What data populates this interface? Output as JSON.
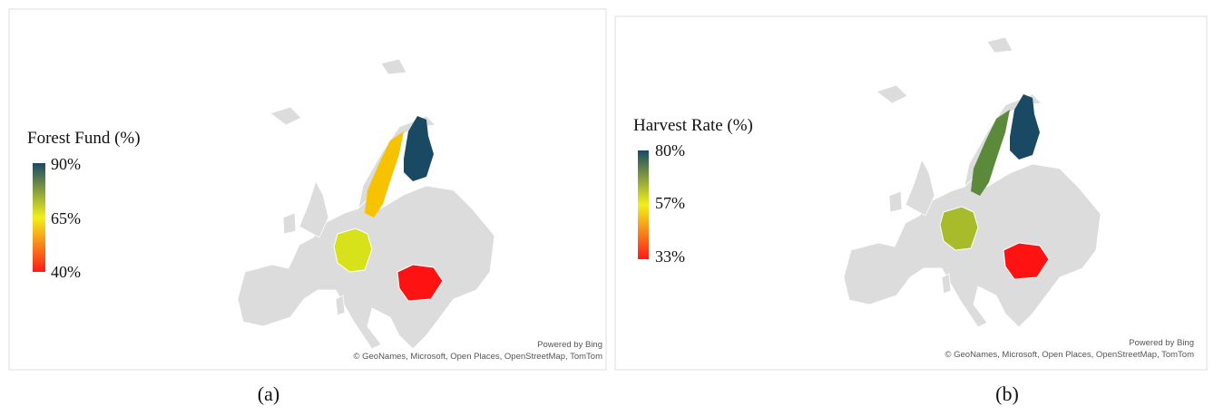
{
  "panels": [
    {
      "legend": {
        "title": "Forest Fund (%)",
        "ticks": [
          "90%",
          "65%",
          "40%"
        ]
      },
      "attribution": {
        "powered": "Powered by Bing",
        "credits": "© GeoNames, Microsoft, Open Places, OpenStreetMap, TomTom"
      },
      "caption": "(a)"
    },
    {
      "legend": {
        "title": "Harvest Rate (%)",
        "ticks": [
          "80%",
          "57%",
          "33%"
        ]
      },
      "attribution": {
        "powered": "Powered by Bing",
        "credits": "© GeoNames, Microsoft, Open Places, OpenStreetMap, TomTom"
      },
      "caption": "(b)"
    }
  ]
}
